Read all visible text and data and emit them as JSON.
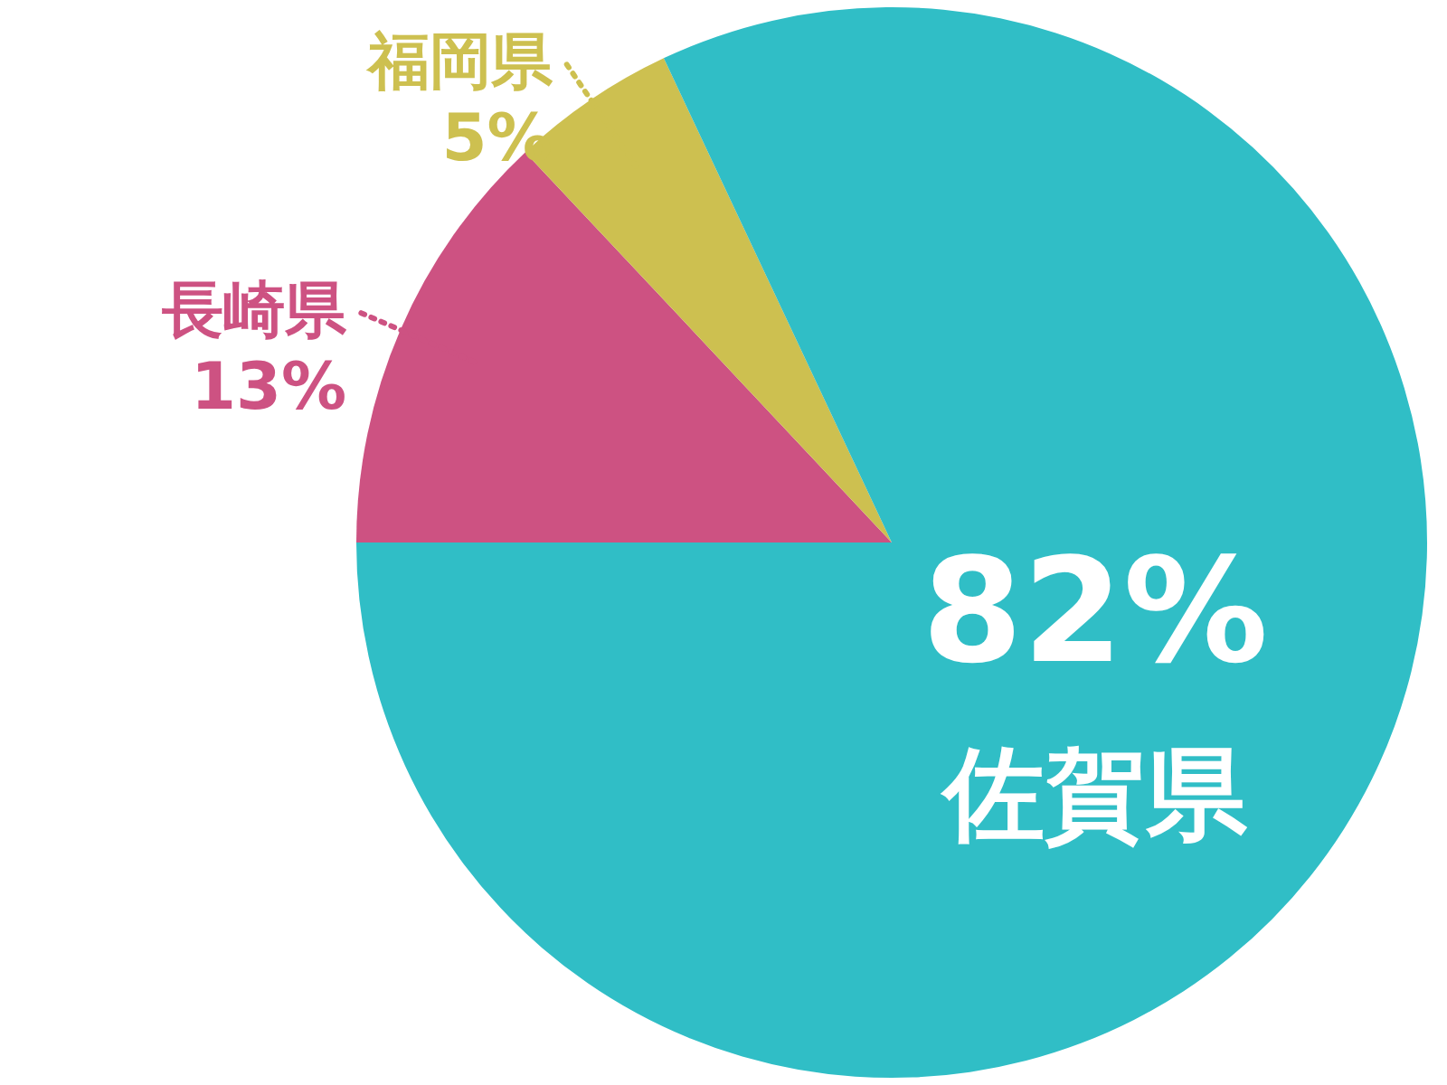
{
  "chart_data": {
    "type": "pie",
    "categories": [
      "長崎県",
      "福岡県",
      "佐賀県"
    ],
    "values": [
      13,
      5,
      82
    ],
    "colors": [
      "#cd5282",
      "#cdc050",
      "#30bec6"
    ],
    "value_labels": [
      "13%",
      "5%",
      "82%"
    ]
  }
}
